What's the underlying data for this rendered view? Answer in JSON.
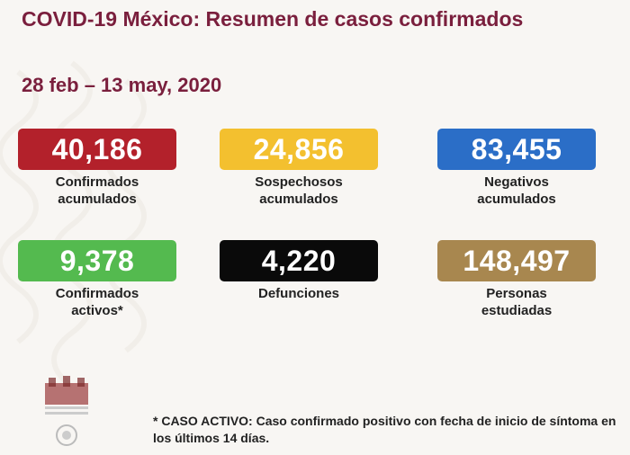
{
  "header": {
    "title": "COVID-19 México: Resumen de casos confirmados",
    "date_range": "28 feb – 13 may, 2020"
  },
  "stats": [
    {
      "value": "40,186",
      "label": "Confirmados\nacumulados",
      "color": "#b3212b"
    },
    {
      "value": "24,856",
      "label": "Sospechosos\nacumulados",
      "color": "#f3c02f"
    },
    {
      "value": "83,455",
      "label": "Negativos\nacumulados",
      "color": "#2b6ec7"
    },
    {
      "value": "9,378",
      "label": "Confirmados\nactivos*",
      "color": "#54ba4f"
    },
    {
      "value": "4,220",
      "label": "Defunciones",
      "color": "#0a0a0a"
    },
    {
      "value": "148,497",
      "label": "Personas\nestudiadas",
      "color": "#a8874f"
    }
  ],
  "footnote": "* CASO ACTIVO: Caso confirmado positivo con fecha de inicio de síntoma en los últimos 14 días."
}
